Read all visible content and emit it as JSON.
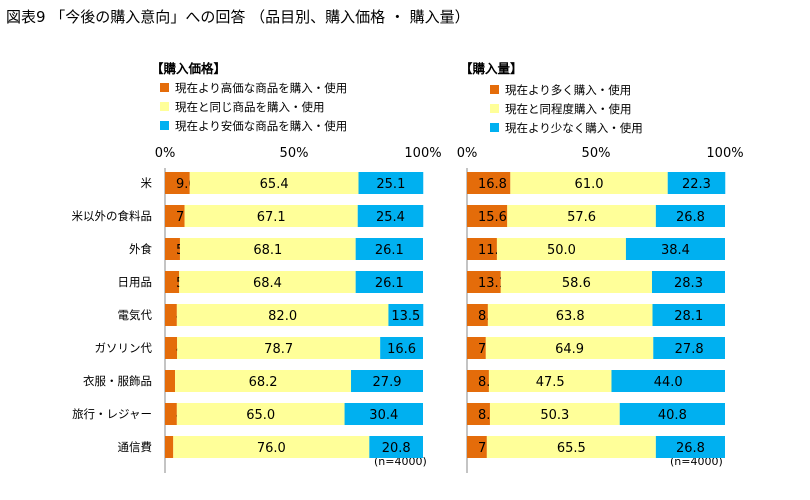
{
  "title": "図表9 「今後の購入意向」への回答 （品目別、購入価格 ・ 購入量）",
  "colors": {
    "high": "#e46c0a",
    "same": "#ffff99",
    "low": "#00b0f0"
  },
  "chart_data": [
    {
      "type": "bar",
      "stacked": true,
      "orientation": "horizontal",
      "title": "【購入価格】",
      "categories": [
        "米",
        "米以外の食料品",
        "外食",
        "日用品",
        "電気代",
        "ガソリン代",
        "衣服・服飾品",
        "旅行・レジャー",
        "通信費"
      ],
      "series": [
        {
          "name": "現在より高価な商品を購入・使用",
          "values": [
            9.6,
            7.6,
            5.8,
            5.5,
            4.6,
            4.7,
            3.9,
            4.6,
            3.2
          ]
        },
        {
          "name": "現在と同じ商品を購入・使用",
          "values": [
            65.4,
            67.1,
            68.1,
            68.4,
            82.0,
            78.7,
            68.2,
            65.0,
            76.0
          ]
        },
        {
          "name": "現在より安価な商品を購入・使用",
          "values": [
            25.1,
            25.4,
            26.1,
            26.1,
            13.5,
            16.6,
            27.9,
            30.4,
            20.8
          ]
        }
      ],
      "xlim": [
        0,
        100
      ],
      "ticks": [
        "0%",
        "50%",
        "100%"
      ],
      "note": "(n=4000)"
    },
    {
      "type": "bar",
      "stacked": true,
      "orientation": "horizontal",
      "title": "【購入量】",
      "categories": [
        "米",
        "米以外の食料品",
        "外食",
        "日用品",
        "電気代",
        "ガソリン代",
        "衣服・服飾品",
        "旅行・レジャー",
        "通信費"
      ],
      "series": [
        {
          "name": "現在より多く購入・使用",
          "values": [
            16.8,
            15.6,
            11.6,
            13.1,
            8.1,
            7.3,
            8.5,
            8.9,
            7.7
          ]
        },
        {
          "name": "現在と同程度購入・使用",
          "values": [
            61.0,
            57.6,
            50.0,
            58.6,
            63.8,
            64.9,
            47.5,
            50.3,
            65.5
          ]
        },
        {
          "name": "現在より少なく購入・使用",
          "values": [
            22.3,
            26.8,
            38.4,
            28.3,
            28.1,
            27.8,
            44.0,
            40.8,
            26.8
          ]
        }
      ],
      "xlim": [
        0,
        100
      ],
      "ticks": [
        "0%",
        "50%",
        "100%"
      ],
      "note": "(n=4000)"
    }
  ]
}
